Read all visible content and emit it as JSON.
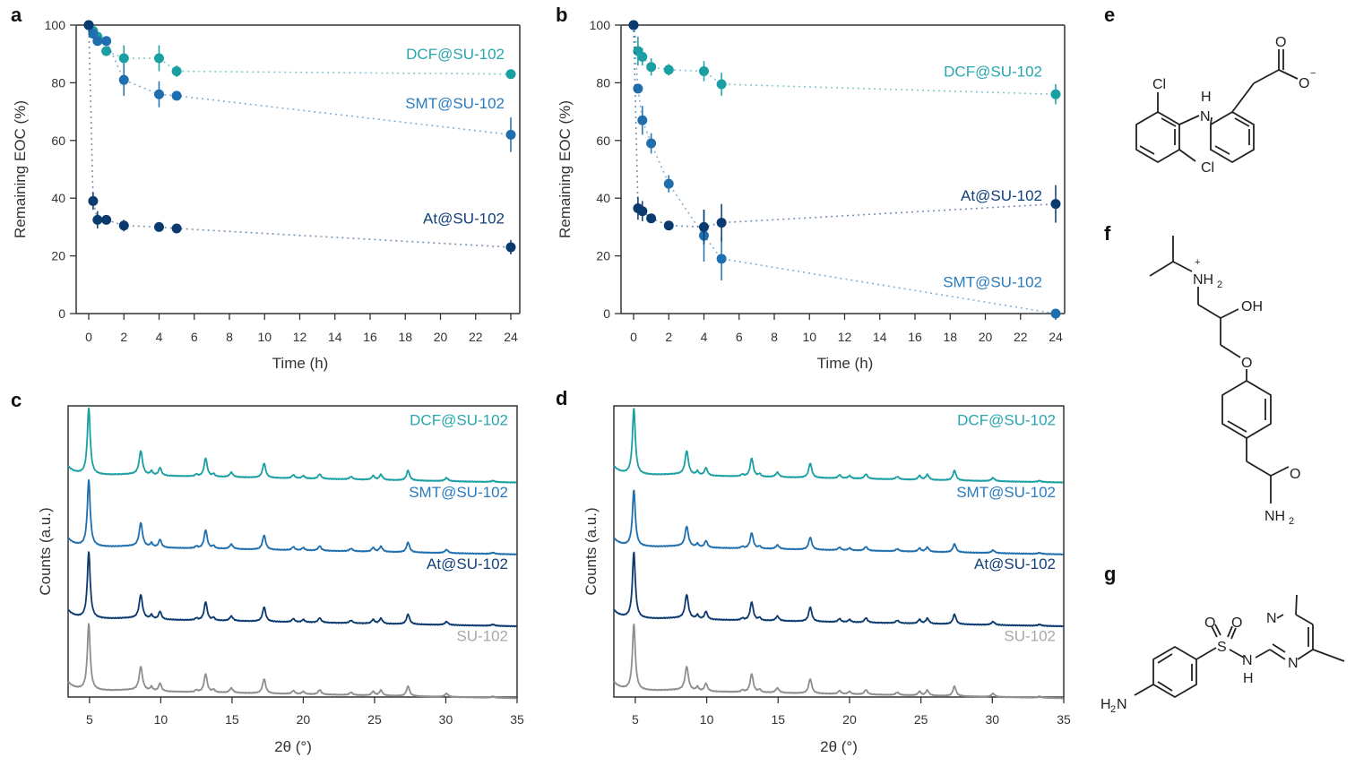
{
  "colors": {
    "DCF": "#1a9fa3",
    "SMT": "#1f6fae",
    "At": "#0b3a6e",
    "SU": "#8e8e8e",
    "dcf_label": "#27a6ad",
    "smt_label": "#2a7bbf",
    "at_label": "#11417a",
    "su_label": "#a8a8a8"
  },
  "panel_labels": {
    "a": "a",
    "b": "b",
    "c": "c",
    "d": "d",
    "e": "e",
    "f": "f",
    "g": "g"
  },
  "chart_data": [
    {
      "id": "a",
      "type": "scatter",
      "title": "",
      "xlabel": "Time (h)",
      "ylabel": "Remaining EOC (%)",
      "xlim": [
        -1,
        25
      ],
      "ylim": [
        0,
        100
      ],
      "xticks": [
        0,
        2,
        4,
        6,
        8,
        10,
        12,
        14,
        16,
        18,
        20,
        22,
        24
      ],
      "yticks": [
        0,
        20,
        40,
        60,
        80,
        100
      ],
      "grid": false,
      "series": [
        {
          "name": "DCF@SU-102",
          "key": "DCF",
          "x": [
            0,
            0.25,
            0.5,
            1,
            2,
            4,
            5,
            24
          ],
          "y": [
            100,
            98,
            96,
            91,
            88.5,
            88.5,
            84,
            83
          ],
          "err": [
            0,
            1,
            1,
            1,
            4.5,
            4.5,
            2,
            1.5
          ],
          "label_y": 90
        },
        {
          "name": "SMT@SU-102",
          "key": "SMT",
          "x": [
            0,
            0.25,
            0.5,
            1,
            2,
            4,
            5,
            24
          ],
          "y": [
            100,
            97,
            94.5,
            94.5,
            81,
            76,
            75.5,
            62
          ],
          "err": [
            0,
            1,
            1,
            1,
            5.5,
            4.5,
            1,
            6
          ],
          "label_y": 73
        },
        {
          "name": "At@SU-102",
          "key": "At",
          "x": [
            0,
            0.25,
            0.5,
            1,
            2,
            4,
            5,
            24
          ],
          "y": [
            100,
            39,
            32.5,
            32.5,
            30.5,
            30,
            29.5,
            23
          ],
          "err": [
            0,
            3,
            3,
            1,
            2,
            1,
            1,
            2.5
          ],
          "label_y": 33
        }
      ]
    },
    {
      "id": "b",
      "type": "scatter",
      "title": "",
      "xlabel": "Time (h)",
      "ylabel": "Remaining EOC (%)",
      "xlim": [
        -1,
        25
      ],
      "ylim": [
        0,
        100
      ],
      "xticks": [
        0,
        2,
        4,
        6,
        8,
        10,
        12,
        14,
        16,
        18,
        20,
        22,
        24
      ],
      "yticks": [
        0,
        20,
        40,
        60,
        80,
        100
      ],
      "grid": false,
      "series": [
        {
          "name": "DCF@SU-102",
          "key": "DCF",
          "x": [
            0,
            0.25,
            0.5,
            1,
            2,
            4,
            5,
            24
          ],
          "y": [
            100,
            91,
            89,
            85.5,
            84.5,
            84,
            79.5,
            76
          ],
          "err": [
            0,
            5,
            3,
            3,
            2,
            3.5,
            4,
            3.5
          ],
          "label_y": 84
        },
        {
          "name": "SMT@SU-102",
          "key": "SMT",
          "x": [
            0,
            0.25,
            0.5,
            1,
            2,
            4,
            5,
            24
          ],
          "y": [
            100,
            78,
            67,
            59,
            45,
            27,
            19,
            0
          ],
          "err": [
            0,
            1,
            5,
            3.5,
            3,
            9,
            7.5,
            0
          ],
          "label_y": 11
        },
        {
          "name": "At@SU-102",
          "key": "At",
          "x": [
            0,
            0.25,
            0.5,
            1,
            2,
            4,
            5,
            24
          ],
          "y": [
            100,
            36.5,
            35.5,
            33,
            30.5,
            30,
            31.5,
            38
          ],
          "err": [
            0,
            4,
            3.5,
            1,
            1,
            6,
            6.5,
            6.5
          ],
          "label_y": 41
        }
      ]
    },
    {
      "id": "c",
      "type": "line",
      "title": "",
      "xlabel": "2θ (°)",
      "ylabel": "Counts (a.u.)",
      "xlim": [
        3.5,
        35
      ],
      "xticks": [
        5,
        10,
        15,
        20,
        25,
        30,
        35
      ],
      "grid": false,
      "peaks": [
        [
          4.95,
          1.0,
          0.12
        ],
        [
          8.6,
          0.36,
          0.14
        ],
        [
          9.35,
          0.06,
          0.1
        ],
        [
          9.95,
          0.12,
          0.12
        ],
        [
          12.5,
          0.03,
          0.1
        ],
        [
          13.15,
          0.28,
          0.13
        ],
        [
          13.7,
          0.04,
          0.1
        ],
        [
          14.95,
          0.07,
          0.14
        ],
        [
          17.25,
          0.22,
          0.13
        ],
        [
          19.3,
          0.05,
          0.12
        ],
        [
          20.0,
          0.04,
          0.12
        ],
        [
          21.15,
          0.07,
          0.13
        ],
        [
          23.35,
          0.04,
          0.14
        ],
        [
          24.9,
          0.06,
          0.12
        ],
        [
          25.45,
          0.08,
          0.13
        ],
        [
          27.35,
          0.15,
          0.13
        ],
        [
          30.05,
          0.05,
          0.14
        ],
        [
          33.3,
          0.02,
          0.15
        ]
      ],
      "series": [
        {
          "name": "DCF@SU-102",
          "key": "DCF",
          "offset": 3,
          "scale": 1.0
        },
        {
          "name": "SMT@SU-102",
          "key": "SMT",
          "offset": 2,
          "scale": 1.0
        },
        {
          "name": "At@SU-102",
          "key": "At",
          "offset": 1,
          "scale": 1.0
        },
        {
          "name": "SU-102",
          "key": "SU",
          "offset": 0,
          "scale": 1.0
        }
      ]
    },
    {
      "id": "d",
      "type": "line",
      "title": "",
      "xlabel": "2θ (°)",
      "ylabel": "Counts (a.u.)",
      "xlim": [
        3.5,
        35
      ],
      "xticks": [
        5,
        10,
        15,
        20,
        25,
        30,
        35
      ],
      "grid": false,
      "peaks": [
        [
          4.9,
          1.0,
          0.12
        ],
        [
          8.6,
          0.36,
          0.14
        ],
        [
          9.35,
          0.06,
          0.1
        ],
        [
          9.95,
          0.12,
          0.12
        ],
        [
          12.5,
          0.03,
          0.1
        ],
        [
          13.15,
          0.28,
          0.13
        ],
        [
          13.7,
          0.04,
          0.1
        ],
        [
          14.95,
          0.07,
          0.14
        ],
        [
          17.25,
          0.22,
          0.13
        ],
        [
          19.3,
          0.05,
          0.12
        ],
        [
          20.0,
          0.04,
          0.12
        ],
        [
          21.15,
          0.07,
          0.13
        ],
        [
          23.35,
          0.04,
          0.14
        ],
        [
          24.9,
          0.06,
          0.12
        ],
        [
          25.45,
          0.08,
          0.13
        ],
        [
          27.35,
          0.15,
          0.13
        ],
        [
          30.05,
          0.05,
          0.14
        ],
        [
          33.3,
          0.02,
          0.15
        ]
      ],
      "series": [
        {
          "name": "DCF@SU-102",
          "key": "DCF",
          "offset": 3,
          "scale": 1.0
        },
        {
          "name": "SMT@SU-102",
          "key": "SMT",
          "offset": 2,
          "scale": 0.85
        },
        {
          "name": "At@SU-102",
          "key": "At",
          "offset": 1,
          "scale": 1.0
        },
        {
          "name": "SU-102",
          "key": "SU",
          "offset": 0,
          "scale": 1.0
        }
      ]
    }
  ],
  "structures": {
    "e": {
      "name": "diclofenac anion",
      "atoms": [
        "Cl",
        "H",
        "N",
        "Cl",
        "O",
        "O",
        "−"
      ]
    },
    "f": {
      "name": "atenolol cation",
      "atoms": [
        "+",
        "NH",
        "2",
        "OH",
        "O",
        "O",
        "NH",
        "2"
      ]
    },
    "g": {
      "name": "sulfamethazine",
      "atoms": [
        "O",
        "O",
        "S",
        "N",
        "H",
        "N",
        "N",
        "H",
        "2",
        "N"
      ]
    }
  }
}
